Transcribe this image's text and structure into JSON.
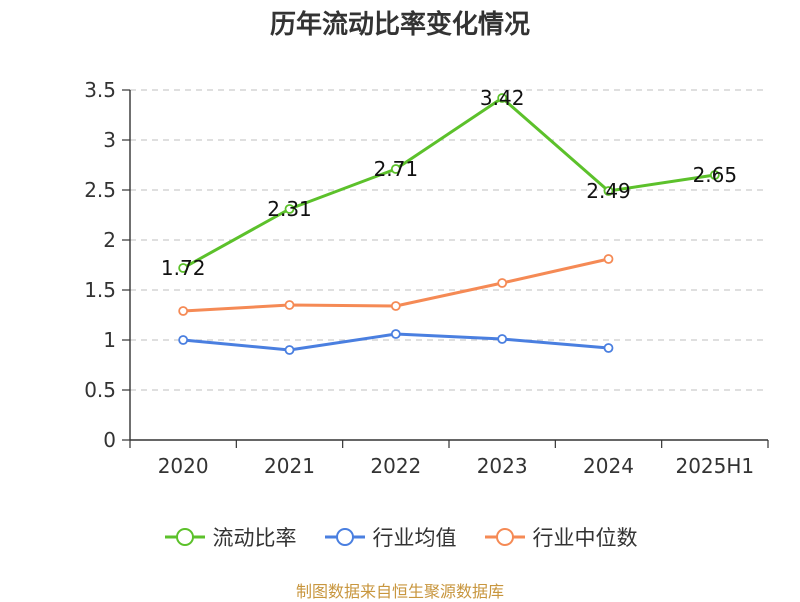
{
  "chart_data": {
    "type": "line",
    "title": "历年流动比率变化情况",
    "categories": [
      "2020",
      "2021",
      "2022",
      "2023",
      "2024",
      "2025H1"
    ],
    "ylim": [
      0,
      3.5
    ],
    "yticks": [
      "0",
      "0.5",
      "1",
      "1.5",
      "2",
      "2.5",
      "3",
      "3.5"
    ],
    "grid": true,
    "legend_position": "bottom",
    "series": [
      {
        "name": "流动比率",
        "color": "#5cc12b",
        "labels": true,
        "values": [
          1.72,
          2.31,
          2.71,
          3.42,
          2.49,
          2.65
        ],
        "value_labels": [
          "1.72",
          "2.31",
          "2.71",
          "3.42",
          "2.49",
          "2.65"
        ]
      },
      {
        "name": "行业均值",
        "color": "#4a7fe0",
        "labels": false,
        "values": [
          1.0,
          0.9,
          1.06,
          1.01,
          0.92,
          null
        ]
      },
      {
        "name": "行业中位数",
        "color": "#f58a55",
        "labels": false,
        "values": [
          1.29,
          1.35,
          1.34,
          1.57,
          1.81,
          null
        ]
      }
    ],
    "source": "制图数据来自恒生聚源数据库"
  }
}
